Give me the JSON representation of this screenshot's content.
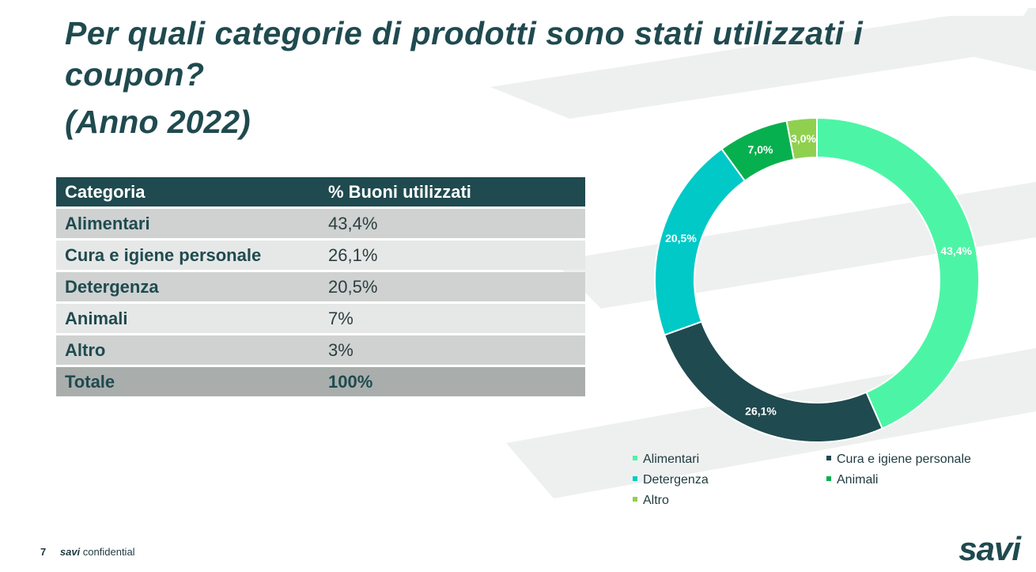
{
  "title": "Per quali categorie di prodotti sono stati utilizzati i coupon?",
  "subtitle": "(Anno 2022)",
  "table": {
    "headers": [
      "Categoria",
      "% Buoni utilizzati"
    ],
    "rows": [
      {
        "category": "Alimentari",
        "value": "43,4%"
      },
      {
        "category": "Cura e igiene personale",
        "value": "26,1%"
      },
      {
        "category": "Detergenza",
        "value": "20,5%"
      },
      {
        "category": "Animali",
        "value": "7%"
      },
      {
        "category": "Altro",
        "value": "3%"
      }
    ],
    "total": {
      "category": "Totale",
      "value": "100%"
    }
  },
  "chart_data": {
    "type": "pie",
    "variant": "donut",
    "categories": [
      "Alimentari",
      "Cura e igiene personale",
      "Detergenza",
      "Animali",
      "Altro"
    ],
    "values": [
      43.4,
      26.1,
      20.5,
      7.0,
      3.0
    ],
    "labels": [
      "43,4%",
      "26,1%",
      "20,5%",
      "7,0%",
      "3,0%"
    ],
    "colors": [
      "#4cf5a5",
      "#1f4a4f",
      "#00c9c7",
      "#07b04e",
      "#8fd14f"
    ],
    "legend_position": "bottom",
    "start_angle_deg": 0,
    "direction": "clockwise"
  },
  "footer": {
    "page_number": "7",
    "brand": "savi",
    "confidential": "confidential"
  },
  "logo": "savi"
}
